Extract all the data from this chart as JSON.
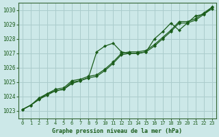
{
  "title": "Graphe pression niveau de la mer (hPa)",
  "bg_color": "#cce8e8",
  "grid_color": "#aacccc",
  "line_color": "#1a5c1a",
  "marker_color": "#1a5c1a",
  "xlim": [
    -0.5,
    23.5
  ],
  "ylim": [
    1022.5,
    1030.5
  ],
  "yticks": [
    1023,
    1024,
    1025,
    1026,
    1027,
    1028,
    1029,
    1030
  ],
  "xticks": [
    0,
    1,
    2,
    3,
    4,
    5,
    6,
    7,
    8,
    9,
    10,
    11,
    12,
    13,
    14,
    15,
    16,
    17,
    18,
    19,
    20,
    21,
    22,
    23
  ],
  "series1_x": [
    0,
    1,
    2,
    3,
    4,
    5,
    6,
    7,
    8,
    9,
    10,
    11,
    12,
    13,
    14,
    15,
    16,
    17,
    18,
    19,
    20,
    21,
    22,
    23
  ],
  "series1_y": [
    1023.1,
    1023.4,
    1023.8,
    1024.1,
    1024.4,
    1024.5,
    1024.9,
    1025.1,
    1025.3,
    1027.1,
    1027.5,
    1027.7,
    1027.1,
    1027.0,
    1027.0,
    1027.1,
    1028.0,
    1028.5,
    1029.1,
    1028.6,
    1029.1,
    1029.6,
    1029.7,
    1030.2
  ],
  "series2_x": [
    0,
    1,
    2,
    3,
    4,
    5,
    6,
    7,
    8,
    9,
    10,
    11,
    12,
    13,
    14,
    15,
    16,
    17,
    18,
    19,
    20,
    21,
    22,
    23
  ],
  "series2_y": [
    1023.1,
    1023.4,
    1023.8,
    1024.2,
    1024.4,
    1024.5,
    1025.0,
    1025.1,
    1025.3,
    1025.4,
    1025.8,
    1026.3,
    1026.9,
    1027.0,
    1027.0,
    1027.1,
    1027.5,
    1028.0,
    1028.5,
    1029.1,
    1029.1,
    1029.3,
    1029.7,
    1030.1
  ],
  "series3_x": [
    0,
    1,
    2,
    3,
    4,
    5,
    6,
    7,
    8,
    9,
    10,
    11,
    12,
    13,
    14,
    15,
    16,
    17,
    18,
    19,
    20,
    21,
    22,
    23
  ],
  "series3_y": [
    1023.1,
    1023.4,
    1023.9,
    1024.2,
    1024.5,
    1024.6,
    1025.1,
    1025.2,
    1025.4,
    1025.5,
    1025.9,
    1026.4,
    1027.0,
    1027.1,
    1027.1,
    1027.2,
    1027.6,
    1028.1,
    1028.6,
    1029.2,
    1029.2,
    1029.4,
    1029.8,
    1030.2
  ]
}
